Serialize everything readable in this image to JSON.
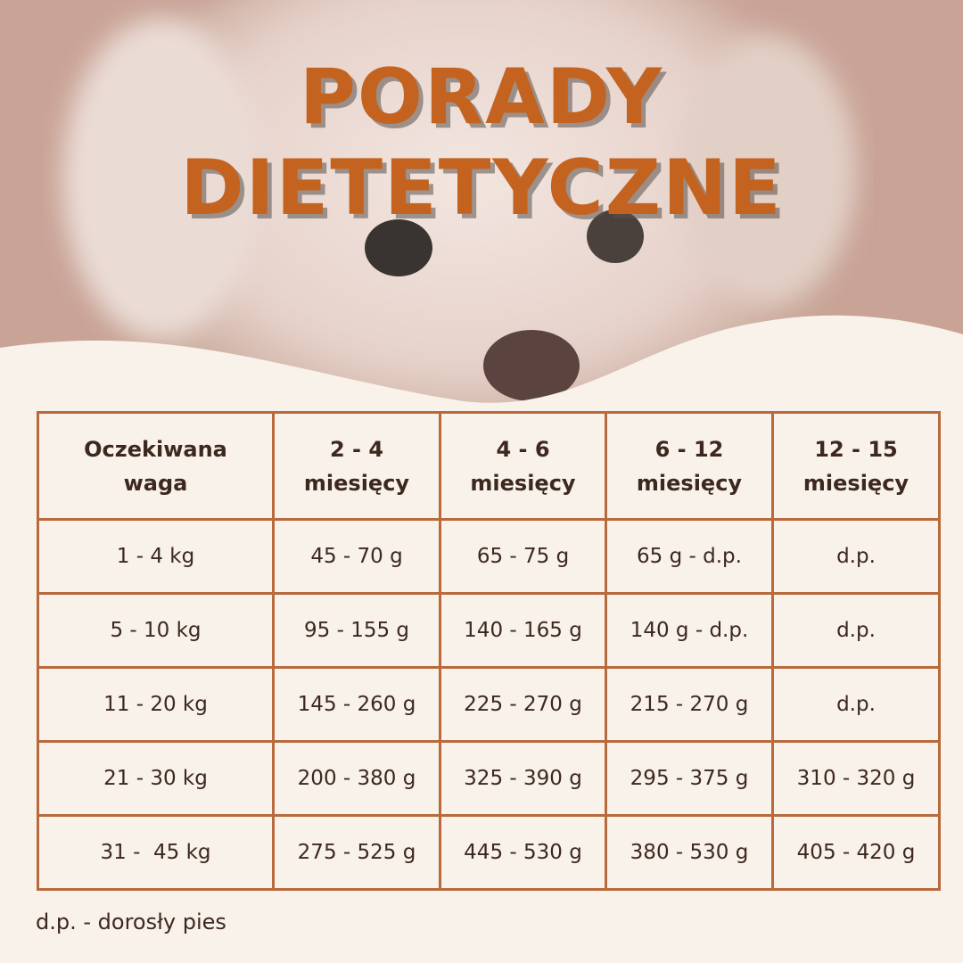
{
  "header": {
    "title_lines": [
      "PORADY",
      "DIETETYCZNE"
    ]
  },
  "table": {
    "header": [
      [
        "Oczekiwana",
        "waga"
      ],
      [
        "2 - 4",
        "miesięcy"
      ],
      [
        "4 - 6",
        "miesięcy"
      ],
      [
        "6 - 12",
        "miesięcy"
      ],
      [
        "12 - 15",
        "miesięcy"
      ]
    ],
    "rows": [
      [
        "1 - 4 kg",
        "45 - 70 g",
        "65 - 75 g",
        "65 g - d.p.",
        "d.p."
      ],
      [
        "5 - 10 kg",
        "95 - 155 g",
        "140 - 165 g",
        "140 g - d.p.",
        "d.p."
      ],
      [
        "11 - 20 kg",
        "145 - 260 g",
        "225 - 270 g",
        "215 - 270 g",
        "d.p."
      ],
      [
        "21 - 30 kg",
        "200 - 380 g",
        "325 - 390 g",
        "295 - 375 g",
        "310 - 320 g"
      ],
      [
        "31 -  45 kg",
        "275 - 525 g",
        "445 - 530 g",
        "380 - 530 g",
        "405 - 420 g"
      ]
    ]
  },
  "footnote": "d.p. - dorosły pies"
}
